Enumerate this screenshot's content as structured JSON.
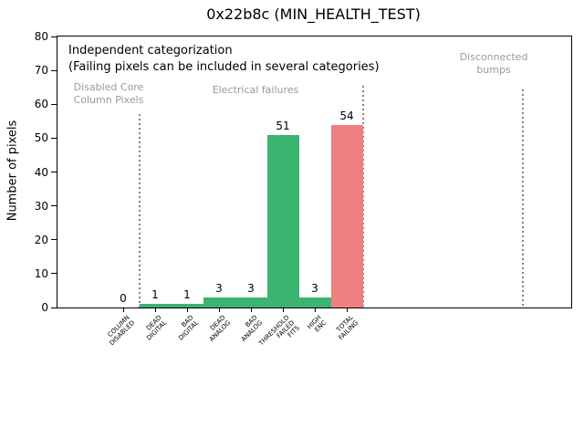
{
  "chart_data": {
    "type": "bar",
    "title": "0x22b8c (MIN_HEALTH_TEST)",
    "ylabel": "Number of pixels",
    "xlabel": "",
    "ylim": [
      0,
      80
    ],
    "yticks": [
      0,
      10,
      20,
      30,
      40,
      50,
      60,
      70,
      80
    ],
    "grid": false,
    "legend": false,
    "categories": [
      "COLUMN\nDISABLED",
      "DEAD\nDIGITAL",
      "BAD\nDIGITAL",
      "DEAD\nANALOG",
      "BAD\nANALOG",
      "THRESHOLD\nFAILED\nFITS",
      "HIGH\nENC",
      "TOTAL\nFAILING"
    ],
    "values": [
      0,
      1,
      1,
      3,
      3,
      51,
      3,
      54
    ],
    "bar_colors": [
      "#3cb371",
      "#3cb371",
      "#3cb371",
      "#3cb371",
      "#3cb371",
      "#3cb371",
      "#3cb371",
      "#f08080"
    ],
    "annotations": {
      "line1": "Independent categorization",
      "line2": "(Failing pixels can be included in several categories)",
      "sections": [
        {
          "label": "Disabled Core\nColumn Pixels"
        },
        {
          "label": "Electrical failures"
        },
        {
          "label": "Disconnected\nbumps"
        }
      ]
    },
    "colors": {
      "bar_green": "#3cb371",
      "bar_red": "#f08080",
      "section_text": "#999999",
      "separator_line": "#828282",
      "spine": "#000000"
    }
  }
}
